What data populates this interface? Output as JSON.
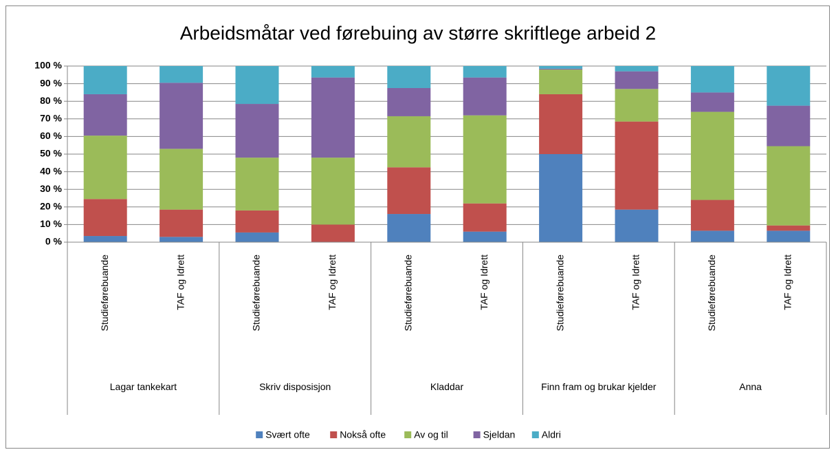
{
  "chart_data": {
    "type": "stacked_bar",
    "title": "Arbeidsmåtar ved førebuing av større skriftlege arbeid  2",
    "categories": [
      "Studieførebuande",
      "TAF og Idrett",
      "Studieførebuande",
      "TAF og Idrett",
      "Studieførebuande",
      "TAF og Idrett",
      "Studieførebuande",
      "TAF og Idrett",
      "Studieførebuande",
      "TAF og Idrett"
    ],
    "groups": [
      "Lagar tankekart",
      "Skriv disposisjon",
      "Kladdar",
      "Finn fram og brukar kjelder",
      "Anna"
    ],
    "series": [
      {
        "name": "Svært ofte",
        "color": "#4f81bd",
        "values": [
          3.5,
          3,
          5.5,
          0,
          16,
          6,
          50,
          18.5,
          6.5,
          6.5
        ]
      },
      {
        "name": "Nokså ofte",
        "color": "#c0504d",
        "values": [
          21,
          15.5,
          12.5,
          10,
          26.5,
          16,
          34,
          50,
          17.5,
          3
        ]
      },
      {
        "name": "Av og til",
        "color": "#9bbb59",
        "values": [
          36,
          34.5,
          30,
          38,
          29,
          50,
          14,
          18.5,
          50,
          45
        ]
      },
      {
        "name": "Sjeldan",
        "color": "#8064a2",
        "values": [
          23.5,
          37.5,
          30.5,
          45.5,
          16,
          21.5,
          0.5,
          10,
          11,
          23
        ]
      },
      {
        "name": "Aldri",
        "color": "#4bacc6",
        "values": [
          16,
          9.5,
          21.5,
          6.5,
          12.5,
          6.5,
          1.5,
          3,
          15,
          22.5
        ]
      }
    ],
    "ylim": [
      0,
      100
    ],
    "yticks": [
      {
        "value": 0,
        "label": "0 %"
      },
      {
        "value": 10,
        "label": "10 %"
      },
      {
        "value": 20,
        "label": "20 %"
      },
      {
        "value": 30,
        "label": "30 %"
      },
      {
        "value": 40,
        "label": "40 %"
      },
      {
        "value": 50,
        "label": "50 %"
      },
      {
        "value": 60,
        "label": "60 %"
      },
      {
        "value": 70,
        "label": "70 %"
      },
      {
        "value": 80,
        "label": "80 %"
      },
      {
        "value": 90,
        "label": "90 %"
      },
      {
        "value": 100,
        "label": "100 %"
      }
    ],
    "grid": true,
    "legend": "bottom"
  }
}
